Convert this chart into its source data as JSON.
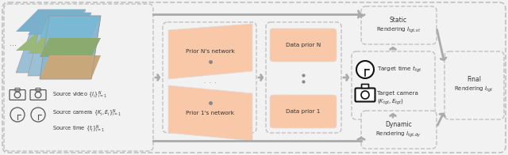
{
  "bg_color": "#f2f2f2",
  "outer_box_color": "#b0b0b0",
  "dashed_color": "#aaaaaa",
  "orange_fill": "#f8c8a8",
  "arrow_color": "#aaaaaa",
  "text_color": "#333333",
  "white": "#ffffff",
  "source_video_text": "Source video $\\{I_i\\}_{i=1}^{N}$",
  "source_camera_text": "Source camera $\\{K_i, E_i\\}_{i=1}^{N}$",
  "source_time_text": "Source time $\\{t_i\\}_{i=1}^{N}$",
  "prior_n_text": "Prior N's network",
  "prior_1_text": "Prior 1's network",
  "data_prior_n_text": "Data prior N",
  "data_prior_1_text": "Data prior 1",
  "target_time_text": "Target time $t_{tgt}$",
  "target_camera_text": "Target camera",
  "target_camera_sub": "$(K_{tgt}, E_{tgt})$",
  "static_title": "Static",
  "static_sub": "Rendering $I_{tgt,st}$",
  "dynamic_title": "Dynamic",
  "dynamic_sub": "Rendering $I_{tgt,dy}$",
  "final_title": "Final",
  "final_sub": "Rendering $I_{tgt}$",
  "dots": "..."
}
